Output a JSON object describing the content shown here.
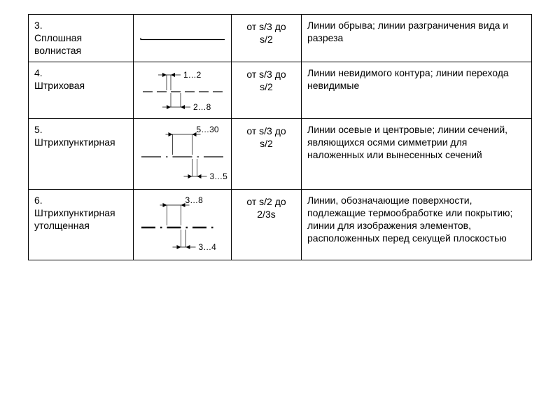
{
  "table": {
    "stroke_color": "#000000",
    "background": "#ffffff",
    "font_family": "Arial",
    "base_font_size": 14,
    "rows": [
      {
        "num": "3.",
        "name": "Сплошная волнистая",
        "thickness_top": "от s/3 до",
        "thickness_bot": "s/2",
        "description": "Линии обрыва; линии разграничения вида и разреза",
        "diagram": {
          "type": "wavy"
        }
      },
      {
        "num": "4.",
        "name": " Штриховая",
        "thickness_top": "от s/3 до",
        "thickness_bot": "s/2",
        "description": "Линии невидимого контура; линии перехода невидимые",
        "diagram": {
          "type": "dashed",
          "gap_label": "1…2",
          "dash_label": "2…8"
        }
      },
      {
        "num": "5.",
        "name": "Штрихпунктирная",
        "thickness_top": "от s/3 до",
        "thickness_bot": "s/2",
        "description": "Линии осевые и центровые; линии сечений, являющихся осями симметрии для наложенных или вынесенных сечений",
        "diagram": {
          "type": "dashdot",
          "gap_label": "3…5",
          "dash_label": "5…30"
        }
      },
      {
        "num": "6.",
        "name": "Штрихпунктирная утолщенная",
        "thickness_top": "от s/2 до",
        "thickness_bot": "2/3s",
        "description": "Линии, обозначающие поверхности, подлежащие термообработке или покрытию; линии для изображения элементов, расположенных перед секущей плоскостью",
        "diagram": {
          "type": "dashdot_thick",
          "gap_label": "3…4",
          "dash_label": "3…8"
        }
      }
    ]
  }
}
